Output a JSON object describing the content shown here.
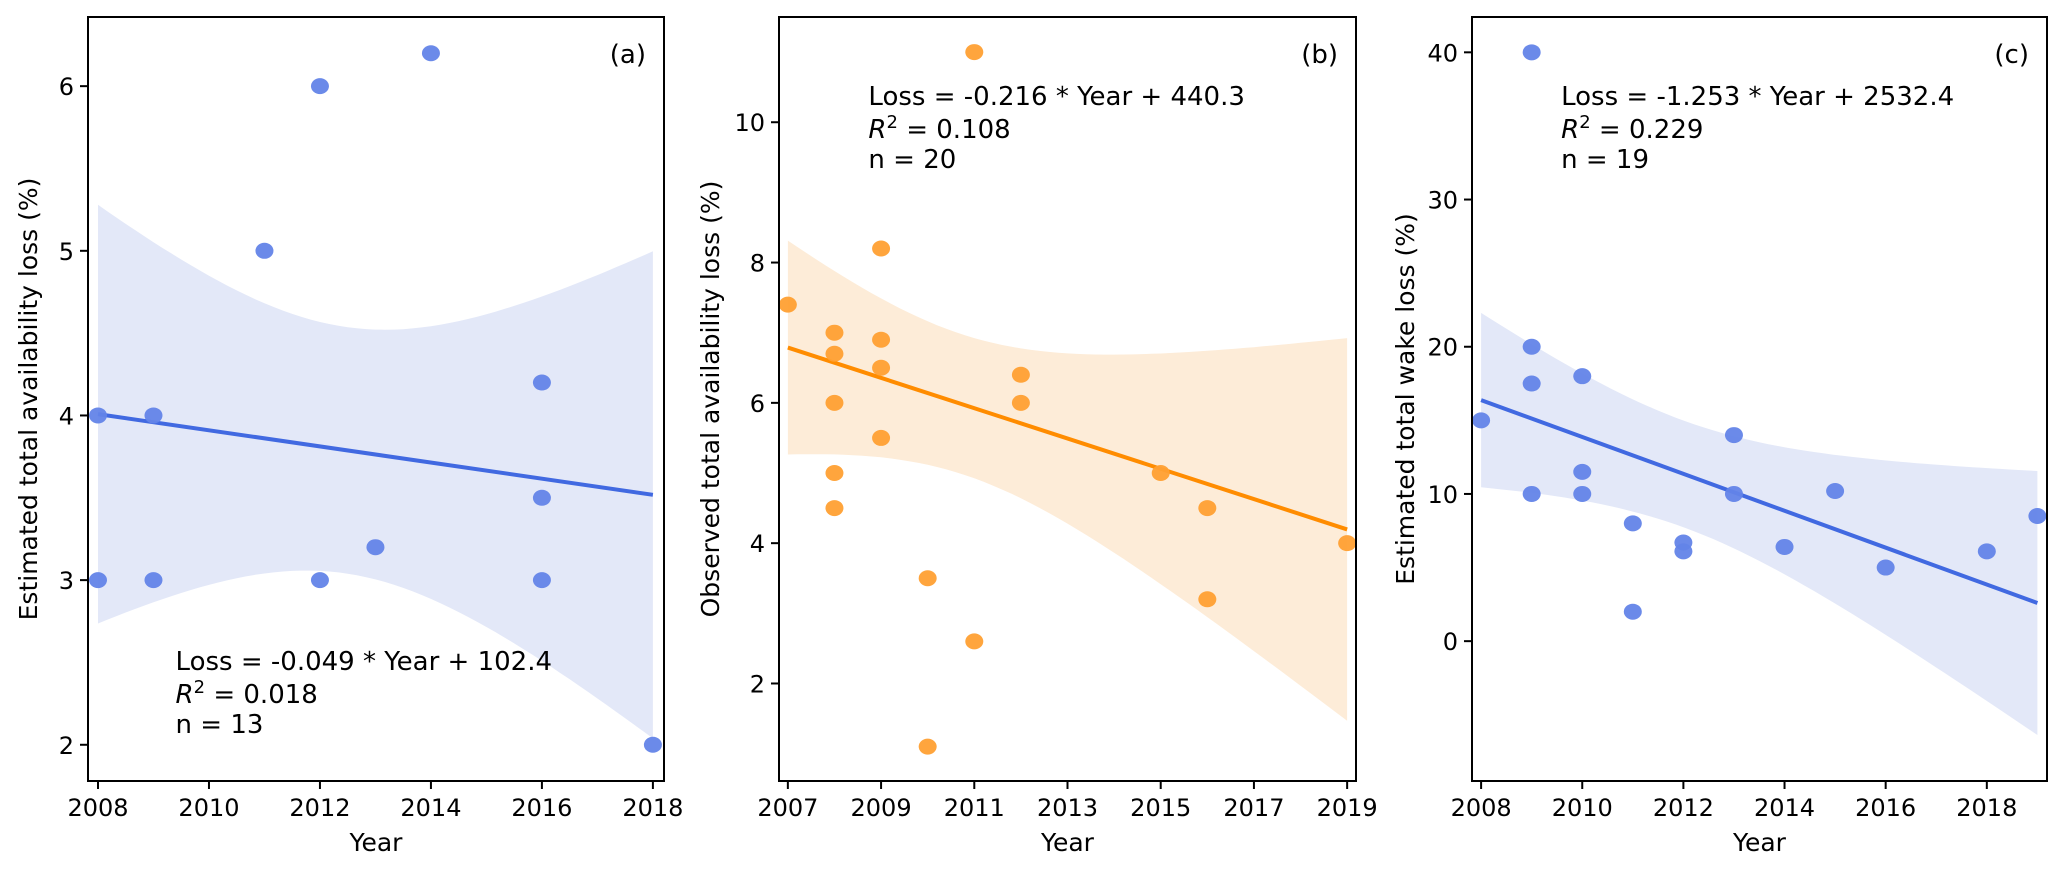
{
  "chart_data": [
    {
      "type": "scatter",
      "panel_label": "(a)",
      "xlabel": "Year",
      "ylabel": "Estimated total availability loss (%)",
      "xlim": [
        2007.82,
        2018.2
      ],
      "ylim": [
        1.78,
        6.42
      ],
      "xticks": [
        2008,
        2010,
        2012,
        2014,
        2016,
        2018
      ],
      "yticks": [
        2,
        3,
        4,
        5,
        6
      ],
      "grid": false,
      "color": "#4169e1",
      "point_color": "#6384e8",
      "band_color": "#e3e8f8",
      "annotation_position": "bottom-left",
      "annotation": {
        "line1": "Loss = -0.049 * Year + 102.4",
        "r2_prefix": "R",
        "r2_exp": "2",
        "r2_value": " = 0.018",
        "line3": "n = 13"
      },
      "fit": {
        "slope": -0.049,
        "intercept": 102.4,
        "r2": 0.018,
        "n": 13
      },
      "x": [
        2008,
        2008,
        2009,
        2009,
        2011,
        2012,
        2012,
        2013,
        2014,
        2016,
        2016,
        2016,
        2018
      ],
      "y": [
        4.0,
        3.0,
        4.0,
        3.0,
        5.0,
        6.0,
        3.0,
        3.2,
        6.2,
        4.2,
        3.5,
        3.0,
        2.0
      ]
    },
    {
      "type": "scatter",
      "panel_label": "(b)",
      "xlabel": "Year",
      "ylabel": "Observed total availability loss (%)",
      "xlim": [
        2006.81,
        2019.19
      ],
      "ylim": [
        0.61,
        11.5
      ],
      "xticks": [
        2007,
        2009,
        2011,
        2013,
        2015,
        2017,
        2019
      ],
      "yticks": [
        2,
        4,
        6,
        8,
        10
      ],
      "grid": false,
      "color": "#ff8c00",
      "point_color": "#ffa033",
      "band_color": "#fdecd8",
      "annotation_position": "top-left",
      "annotation": {
        "line1": "Loss = -0.216 * Year + 440.3",
        "r2_prefix": "R",
        "r2_exp": "2",
        "r2_value": " = 0.108",
        "line3": "n = 20"
      },
      "fit": {
        "slope": -0.216,
        "intercept": 440.3,
        "r2": 0.108,
        "n": 20
      },
      "x": [
        2007,
        2008,
        2008,
        2008,
        2008,
        2008,
        2009,
        2009,
        2009,
        2009,
        2010,
        2010,
        2011,
        2011,
        2012,
        2012,
        2015,
        2016,
        2016,
        2019
      ],
      "y": [
        7.4,
        7.0,
        6.7,
        6.0,
        5.0,
        4.5,
        8.2,
        6.9,
        6.5,
        5.5,
        3.5,
        1.1,
        11.0,
        2.6,
        6.4,
        6.0,
        5.0,
        4.5,
        3.2,
        4.0
      ]
    },
    {
      "type": "scatter",
      "panel_label": "(c)",
      "xlabel": "Year",
      "ylabel": "Estimated total wake loss (%)",
      "xlim": [
        2007.82,
        2019.19
      ],
      "ylim": [
        -9.5,
        42.4
      ],
      "xticks": [
        2008,
        2010,
        2012,
        2014,
        2016,
        2018
      ],
      "yticks": [
        0,
        10,
        20,
        30,
        40
      ],
      "grid": false,
      "color": "#4169e1",
      "point_color": "#6384e8",
      "band_color": "#e3e8f8",
      "annotation_position": "top-left",
      "annotation": {
        "line1": "Loss = -1.253 * Year + 2532.4",
        "r2_prefix": "R",
        "r2_exp": "2",
        "r2_value": " = 0.229",
        "line3": "n = 19"
      },
      "fit": {
        "slope": -1.253,
        "intercept": 2532.4,
        "r2": 0.229,
        "n": 19
      },
      "x": [
        2008,
        2009,
        2009,
        2009,
        2009,
        2010,
        2010,
        2010,
        2011,
        2011,
        2012,
        2012,
        2013,
        2013,
        2014,
        2015,
        2016,
        2018,
        2019
      ],
      "y": [
        15.0,
        40.0,
        20.0,
        17.5,
        10.0,
        18.0,
        11.5,
        10.0,
        8.0,
        2.0,
        6.7,
        6.1,
        14.0,
        10.0,
        6.4,
        10.2,
        5.0,
        6.1,
        8.5
      ]
    }
  ]
}
